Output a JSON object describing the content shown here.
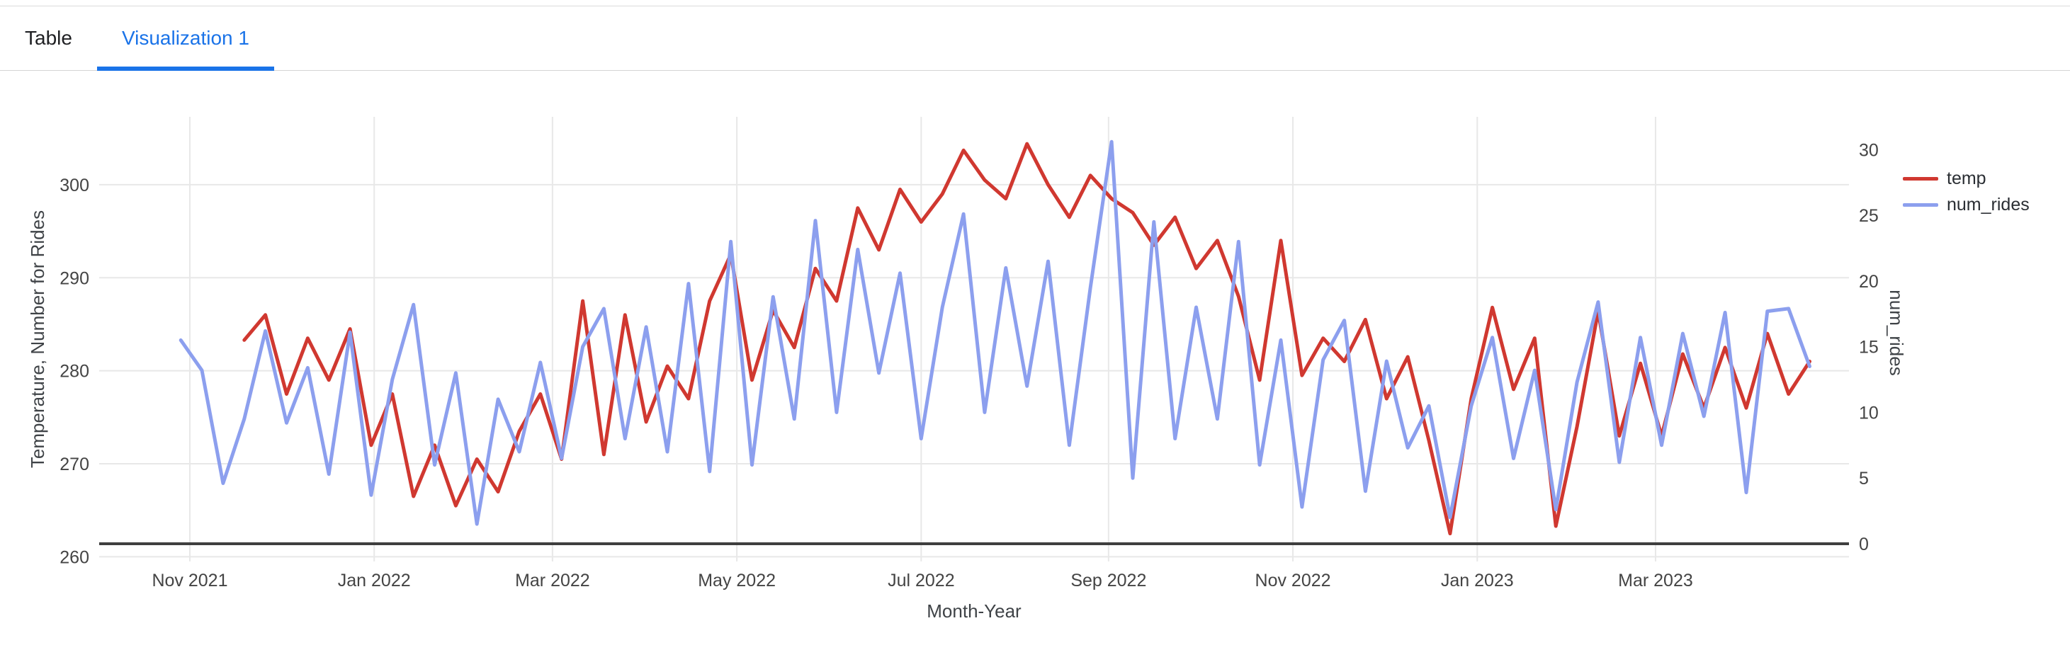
{
  "tabs": {
    "items": [
      {
        "label": "Table",
        "active": false
      },
      {
        "label": "Visualization 1",
        "active": true
      }
    ]
  },
  "colors": {
    "temp": "#d03830",
    "num_rides": "#8c9fee",
    "active_tab": "#1a73e8",
    "grid": "#e8e8e8",
    "zeroline": "#3f3f3f",
    "tick_text": "#444444"
  },
  "chart_data": {
    "type": "line",
    "title": "",
    "xlabel": "Month-Year",
    "ylabel_left": "Temperature, Number for Rides",
    "ylabel_right": "num_rides",
    "grid": true,
    "legend_position": "top-right",
    "x_ticks": [
      {
        "date": "2021-11-01",
        "label": "Nov 2021"
      },
      {
        "date": "2022-01-01",
        "label": "Jan 2022"
      },
      {
        "date": "2022-03-01",
        "label": "Mar 2022"
      },
      {
        "date": "2022-05-01",
        "label": "May 2022"
      },
      {
        "date": "2022-07-01",
        "label": "Jul 2022"
      },
      {
        "date": "2022-09-01",
        "label": "Sep 2022"
      },
      {
        "date": "2022-11-01",
        "label": "Nov 2022"
      },
      {
        "date": "2023-01-01",
        "label": "Jan 2023"
      },
      {
        "date": "2023-03-01",
        "label": "Mar 2023"
      }
    ],
    "y_left_ticks": [
      260,
      270,
      280,
      290,
      300
    ],
    "y_right_ticks": [
      0,
      5,
      10,
      15,
      20,
      25,
      30
    ],
    "x_range": [
      "2021-10-02",
      "2023-05-04"
    ],
    "y_left_range": [
      259.5,
      307.3
    ],
    "y_right_range": [
      -1.35,
      32.5
    ],
    "legend": [
      {
        "name": "temp",
        "color": "#d03830"
      },
      {
        "name": "num_rides",
        "color": "#8c9fee"
      }
    ],
    "x": [
      "2021-10-29",
      "2021-11-05",
      "2021-11-12",
      "2021-11-19",
      "2021-11-26",
      "2021-12-03",
      "2021-12-10",
      "2021-12-17",
      "2021-12-24",
      "2021-12-31",
      "2022-01-07",
      "2022-01-14",
      "2022-01-21",
      "2022-01-28",
      "2022-02-04",
      "2022-02-11",
      "2022-02-18",
      "2022-02-25",
      "2022-03-04",
      "2022-03-11",
      "2022-03-18",
      "2022-03-25",
      "2022-04-01",
      "2022-04-08",
      "2022-04-15",
      "2022-04-22",
      "2022-04-29",
      "2022-05-06",
      "2022-05-13",
      "2022-05-20",
      "2022-05-27",
      "2022-06-03",
      "2022-06-10",
      "2022-06-17",
      "2022-06-24",
      "2022-07-01",
      "2022-07-08",
      "2022-07-15",
      "2022-07-22",
      "2022-07-29",
      "2022-08-05",
      "2022-08-12",
      "2022-08-19",
      "2022-08-26",
      "2022-09-02",
      "2022-09-09",
      "2022-09-16",
      "2022-09-23",
      "2022-09-30",
      "2022-10-07",
      "2022-10-14",
      "2022-10-21",
      "2022-10-28",
      "2022-11-04",
      "2022-11-11",
      "2022-11-18",
      "2022-11-25",
      "2022-12-02",
      "2022-12-09",
      "2022-12-16",
      "2022-12-23",
      "2022-12-30",
      "2023-01-06",
      "2023-01-13",
      "2023-01-20",
      "2023-01-27",
      "2023-02-03",
      "2023-02-10",
      "2023-02-17",
      "2023-02-24",
      "2023-03-03",
      "2023-03-10",
      "2023-03-17",
      "2023-03-24",
      "2023-03-31",
      "2023-04-07",
      "2023-04-14",
      "2023-04-21"
    ],
    "series": [
      {
        "name": "temp",
        "axis": "left",
        "color": "#d03830",
        "values": [
          null,
          null,
          null,
          283.3,
          286,
          277.5,
          283.5,
          279,
          284.5,
          272,
          277.5,
          266.5,
          272,
          265.5,
          270.5,
          267,
          273.5,
          277.5,
          270.5,
          287.5,
          271,
          286,
          274.5,
          280.5,
          277,
          287.5,
          292.5,
          279,
          286.5,
          282.5,
          291,
          287.5,
          297.5,
          293,
          299.5,
          296,
          299,
          303.7,
          300.5,
          298.5,
          304.4,
          300,
          296.5,
          301,
          298.5,
          297,
          293.5,
          296.5,
          291,
          294,
          288,
          279,
          294,
          279.5,
          283.5,
          281,
          285.5,
          277,
          281.5,
          272.5,
          262.5,
          277,
          286.8,
          278,
          283.5,
          263.3,
          274,
          286.4,
          273,
          280.8,
          273,
          281.8,
          276,
          282.5,
          276,
          284,
          277.5,
          281
        ]
      },
      {
        "name": "num_rides",
        "axis": "right",
        "color": "#8c9fee",
        "values": [
          15.5,
          13.2,
          4.6,
          9.5,
          16.2,
          9.2,
          13.4,
          5.3,
          16.1,
          3.7,
          12.5,
          18.2,
          6,
          13,
          1.5,
          11,
          7,
          13.8,
          6.5,
          15,
          17.9,
          8,
          16.5,
          7,
          19.8,
          5.5,
          23,
          6,
          18.8,
          9.5,
          24.6,
          10,
          22.4,
          13,
          20.6,
          8,
          18,
          25.1,
          10,
          21,
          12,
          21.5,
          7.5,
          19.5,
          30.6,
          5,
          24.5,
          8,
          18,
          9.5,
          23,
          6,
          15.5,
          2.8,
          14,
          17,
          4,
          13.9,
          7.3,
          10.5,
          2,
          10.5,
          15.7,
          6.5,
          13.2,
          2.6,
          12.3,
          18.4,
          6.2,
          15.7,
          7.5,
          16,
          9.7,
          17.6,
          3.9,
          17.7,
          17.9,
          13.5
        ]
      }
    ]
  }
}
